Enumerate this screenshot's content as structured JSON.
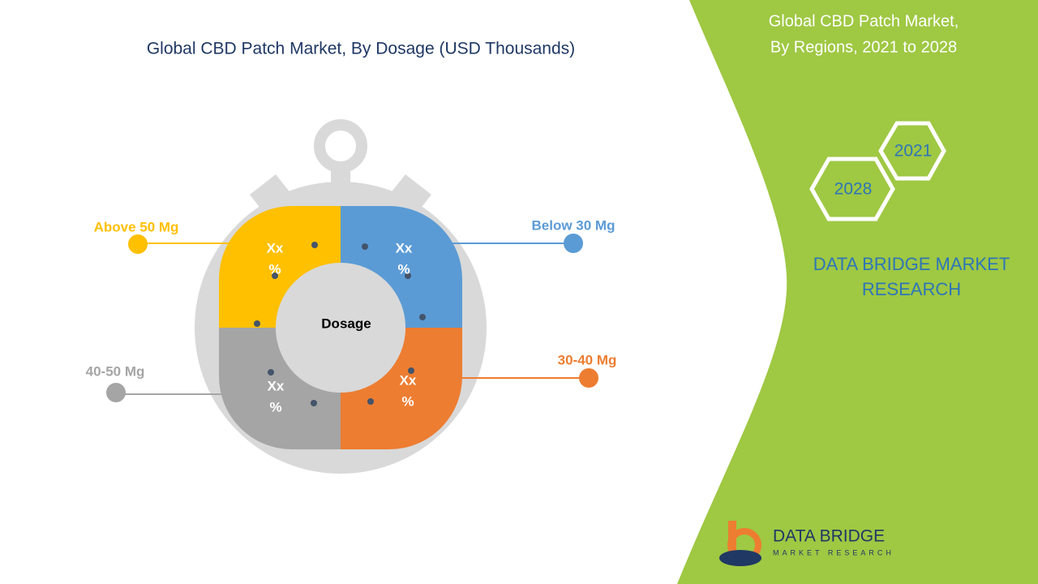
{
  "title": "Global CBD Patch Market, By Dosage (USD Thousands)",
  "center_label": "Dosage",
  "segments": [
    {
      "label": "Above 50 Mg",
      "value_label": [
        "Xx",
        "%"
      ],
      "color": "#ffc000"
    },
    {
      "label": "Below 30 Mg",
      "value_label": [
        "Xx",
        "%"
      ],
      "color": "#5b9bd5"
    },
    {
      "label": "30-40 Mg",
      "value_label": [
        "Xx",
        "%"
      ],
      "color": "#ed7d31"
    },
    {
      "label": "40-50 Mg",
      "value_label": [
        "Xx",
        "%"
      ],
      "color": "#a5a5a5"
    }
  ],
  "side_panel": {
    "title": [
      "Global CBD Patch Market,",
      "By Regions, 2021 to 2028"
    ],
    "years": [
      "2021",
      "2028"
    ],
    "brand": [
      "DATA BRIDGE MARKET",
      "RESEARCH"
    ]
  },
  "logo": {
    "name": "DATA BRIDGE",
    "tagline": "MARKET RESEARCH"
  }
}
